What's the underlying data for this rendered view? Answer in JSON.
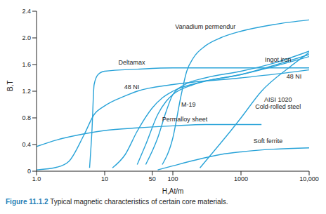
{
  "chart_data": {
    "type": "line",
    "title": "Figure 11.1.2 Typical magnetic characteristics of certain core materials.",
    "x_label": "H,At/m",
    "y_label": "B,T",
    "log": "x",
    "grid": false,
    "xlim": [
      1,
      10000
    ],
    "xticks": [
      {
        "value": 1,
        "label": "1.0"
      },
      10,
      50,
      100,
      1000,
      {
        "value": 10000,
        "label": "10,000"
      }
    ],
    "ylim": [
      0,
      2.4
    ],
    "yticks": [
      0,
      0.4,
      0.8,
      1.2,
      1.6,
      {
        "value": 2,
        "label": "2.0"
      },
      2.4
    ],
    "series": [
      {
        "color": "#29a3d8",
        "x": [
          70,
          100,
          130,
          160,
          200,
          300,
          500,
          1000,
          3000,
          10000
        ],
        "values": [
          0.1,
          0.5,
          1.1,
          1.5,
          1.7,
          1.88,
          2.0,
          2.1,
          2.2,
          2.27
        ]
      },
      {
        "color": "#29a3d8",
        "x": [
          6,
          6.5,
          7,
          8,
          10,
          30,
          100,
          1000,
          10000
        ],
        "values": [
          0.05,
          0.6,
          1.3,
          1.45,
          1.5,
          1.53,
          1.55,
          1.55,
          1.55
        ]
      },
      {
        "color": "#29a3d8",
        "x": [
          1,
          2,
          3,
          5,
          7,
          10,
          20,
          30,
          100,
          1000,
          5000,
          10000
        ],
        "values": [
          0.02,
          0.06,
          0.15,
          0.55,
          0.85,
          0.98,
          1.13,
          1.2,
          1.3,
          1.4,
          1.48,
          1.52
        ]
      },
      {
        "color": "#29a3d8",
        "x": [
          13,
          20,
          30,
          50,
          70,
          100,
          300,
          1000,
          10000
        ],
        "values": [
          0.05,
          0.25,
          0.6,
          0.95,
          1.1,
          1.2,
          1.35,
          1.45,
          1.72
        ]
      },
      {
        "color": "#29a3d8",
        "x": [
          30,
          40,
          60,
          80,
          100,
          200,
          1000,
          10000
        ],
        "values": [
          0.1,
          0.4,
          0.85,
          1.05,
          1.15,
          1.3,
          1.45,
          1.75
        ]
      },
      {
        "color": "#29a3d8",
        "x": [
          40,
          60,
          80,
          100,
          150,
          300,
          1000,
          3000,
          10000
        ],
        "values": [
          0.1,
          0.5,
          0.9,
          1.15,
          1.3,
          1.4,
          1.5,
          1.62,
          1.8
        ]
      },
      {
        "color": "#29a3d8",
        "x": [
          250,
          400,
          700,
          1000,
          2000,
          5000,
          10000
        ],
        "values": [
          0.05,
          0.3,
          0.6,
          0.8,
          1.2,
          1.55,
          1.78
        ]
      },
      {
        "color": "#29a3d8",
        "x": [
          1,
          2,
          5,
          10,
          30,
          100,
          300,
          2000
        ],
        "values": [
          0.37,
          0.47,
          0.56,
          0.61,
          0.65,
          0.68,
          0.7,
          0.7
        ]
      },
      {
        "color": "#29a3d8",
        "x": [
          60,
          100,
          200,
          500,
          1000,
          3000,
          10000
        ],
        "values": [
          0.02,
          0.08,
          0.16,
          0.25,
          0.29,
          0.33,
          0.35
        ]
      }
    ],
    "annotations": [
      {
        "text": "Vanadium permendur",
        "x": 300,
        "y": 2.17
      },
      {
        "text": "Ingot iron",
        "x": 3500,
        "y": 1.68
      },
      {
        "text": "Deltamax",
        "x": 25,
        "y": 1.63
      },
      {
        "text": "48 NI",
        "x": 25,
        "y": 1.27
      },
      {
        "text": "48 NI",
        "x": 6000,
        "y": 1.42
      },
      {
        "text": "M-19",
        "x": 170,
        "y": 1.0
      },
      {
        "text": "AISI 1020",
        "x": 3500,
        "y": 1.08
      },
      {
        "text": "Cold-rolled steel",
        "x": 3500,
        "y": 0.97
      },
      {
        "text": "Permalloy sheet",
        "x": 150,
        "y": 0.78
      },
      {
        "text": "Soft ferrite",
        "x": 2500,
        "y": 0.45
      }
    ]
  }
}
